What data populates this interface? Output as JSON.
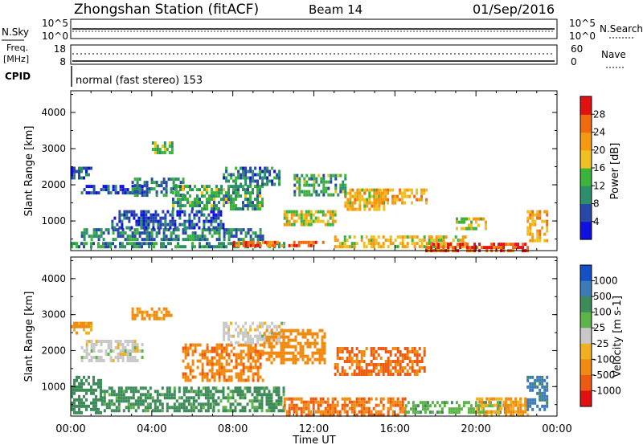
{
  "header": {
    "station": "Zhongshan Station (fitACF)",
    "beam": "Beam 14",
    "date": "01/Sep/2016"
  },
  "noise_panel": {
    "left_label": "N.Sky",
    "right_label": "N.Search",
    "left_ticks": [
      "10^5",
      "10^0"
    ],
    "right_ticks": [
      "10^5",
      "10^0"
    ]
  },
  "freq_panel": {
    "left_label_1": "Freq.",
    "left_label_2": "[MHz]",
    "left_ticks": [
      "18",
      "8"
    ],
    "right_label": "Nave",
    "right_ticks": [
      "60",
      "0"
    ],
    "cpid_label": "CPID",
    "cpid_text": "normal (fast stereo) 153"
  },
  "colors": {
    "power": [
      "#1010e0",
      "#2848a8",
      "#2d8f6a",
      "#3cb43c",
      "#f0c020",
      "#f59a10",
      "#f06a10",
      "#e21010"
    ],
    "velocity": [
      "#1450c8",
      "#3d7ab8",
      "#3e8b5a",
      "#5cb448",
      "#c8c8c8",
      "#f0b020",
      "#f08a10",
      "#ee5a10",
      "#e21010"
    ]
  },
  "chart_data": [
    {
      "type": "heatmap",
      "name": "power",
      "xlabel": "",
      "ylabel": "Slant Range [km]",
      "x_ticks": [
        "00:00",
        "04:00",
        "08:00",
        "12:00",
        "16:00",
        "20:00",
        "00:00"
      ],
      "y_ticks": [
        "1000",
        "2000",
        "3000",
        "4000"
      ],
      "ylim": [
        180,
        4600
      ],
      "colorbar_label": "Power [dB]",
      "colorbar_ticks": [
        "4",
        "8",
        "12",
        "16",
        "20",
        "24",
        "28"
      ],
      "colorbar_range": [
        0,
        32
      ],
      "regions": [
        {
          "t": [
            0.0,
            10.5
          ],
          "r": [
            250,
            420
          ],
          "v": 10
        },
        {
          "t": [
            0.5,
            9.5
          ],
          "r": [
            500,
            800
          ],
          "v": 9
        },
        {
          "t": [
            2.0,
            7.5
          ],
          "r": [
            800,
            1300
          ],
          "v": 6
        },
        {
          "t": [
            0.5,
            3.5
          ],
          "r": [
            1750,
            2000
          ],
          "v": 5
        },
        {
          "t": [
            0.0,
            1.0
          ],
          "r": [
            2200,
            2500
          ],
          "v": 6
        },
        {
          "t": [
            3.0,
            5.5
          ],
          "r": [
            1700,
            2200
          ],
          "v": 9
        },
        {
          "t": [
            5.0,
            9.5
          ],
          "r": [
            1300,
            2000
          ],
          "v": 12
        },
        {
          "t": [
            7.5,
            10.3
          ],
          "r": [
            2000,
            2500
          ],
          "v": 8
        },
        {
          "t": [
            4.0,
            5.0
          ],
          "r": [
            2900,
            3200
          ],
          "v": 14
        },
        {
          "t": [
            8.0,
            12.5
          ],
          "r": [
            300,
            450
          ],
          "v": 26
        },
        {
          "t": [
            10.5,
            13.0
          ],
          "r": [
            900,
            1300
          ],
          "v": 17
        },
        {
          "t": [
            13.5,
            15.5
          ],
          "r": [
            1300,
            1900
          ],
          "v": 20
        },
        {
          "t": [
            15.0,
            17.5
          ],
          "r": [
            1500,
            1900
          ],
          "v": 21
        },
        {
          "t": [
            13.0,
            19.5
          ],
          "r": [
            300,
            600
          ],
          "v": 19
        },
        {
          "t": [
            17.5,
            22.5
          ],
          "r": [
            200,
            400
          ],
          "v": 28
        },
        {
          "t": [
            19.0,
            20.5
          ],
          "r": [
            800,
            1100
          ],
          "v": 18
        },
        {
          "t": [
            22.5,
            23.5
          ],
          "r": [
            500,
            1300
          ],
          "v": 22
        },
        {
          "t": [
            11.0,
            13.5
          ],
          "r": [
            1700,
            2300
          ],
          "v": 12
        }
      ]
    },
    {
      "type": "heatmap",
      "name": "velocity",
      "xlabel": "Time UT",
      "ylabel": "Slant Range [km]",
      "x_ticks": [
        "00:00",
        "04:00",
        "08:00",
        "12:00",
        "16:00",
        "20:00",
        "00:00"
      ],
      "y_ticks": [
        "1000",
        "2000",
        "3000",
        "4000"
      ],
      "ylim": [
        180,
        4600
      ],
      "colorbar_label": "Velocity [m s-1]",
      "colorbar_ticks": [
        "1000",
        "500",
        "100",
        "25",
        "-25",
        "-100",
        "-500",
        "-1000"
      ],
      "regions": [
        {
          "t": [
            0.0,
            1.5
          ],
          "r": [
            300,
            1300
          ],
          "v": 200
        },
        {
          "t": [
            1.5,
            7.0
          ],
          "r": [
            300,
            1000
          ],
          "v": 150
        },
        {
          "t": [
            0.5,
            3.5
          ],
          "r": [
            1700,
            2300
          ],
          "v": 0
        },
        {
          "t": [
            0.0,
            1.0
          ],
          "r": [
            2500,
            2800
          ],
          "v": -120
        },
        {
          "t": [
            3.0,
            5.0
          ],
          "r": [
            2900,
            3200
          ],
          "v": -150
        },
        {
          "t": [
            7.0,
            10.5
          ],
          "r": [
            300,
            1000
          ],
          "v": 130
        },
        {
          "t": [
            5.5,
            9.5
          ],
          "r": [
            1200,
            2200
          ],
          "v": -400
        },
        {
          "t": [
            7.5,
            10.5
          ],
          "r": [
            2200,
            2800
          ],
          "v": 0
        },
        {
          "t": [
            9.5,
            12.5
          ],
          "r": [
            1700,
            2600
          ],
          "v": -350
        },
        {
          "t": [
            10.5,
            16.5
          ],
          "r": [
            250,
            700
          ],
          "v": -500
        },
        {
          "t": [
            13.0,
            17.5
          ],
          "r": [
            1300,
            2100
          ],
          "v": -600
        },
        {
          "t": [
            16.5,
            21.5
          ],
          "r": [
            250,
            600
          ],
          "v": 80
        },
        {
          "t": [
            20.0,
            22.5
          ],
          "r": [
            250,
            700
          ],
          "v": -100
        },
        {
          "t": [
            22.5,
            23.5
          ],
          "r": [
            400,
            1300
          ],
          "v": 700
        }
      ]
    }
  ]
}
